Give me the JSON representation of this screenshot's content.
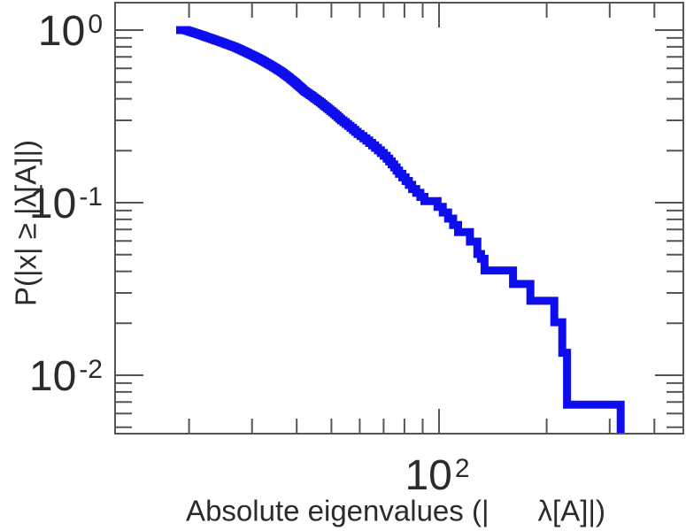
{
  "figure": {
    "background": "#ffffff",
    "frame_color": "#555555",
    "text_color": "#2b2b2b",
    "curve_color": "#0d0dee"
  },
  "chart_data": {
    "type": "line",
    "line_style": "ccdf-staircase",
    "title": "",
    "xlabel": "Absolute eigenvalues (|      λ[A]|)",
    "ylabel": "P(|x| ≥ |λ[A]|)",
    "x_scale": "log",
    "y_scale": "log",
    "xlim": [
      12.42,
      482
    ],
    "ylim": [
      0.004588,
      1.442
    ],
    "grid": false,
    "legend": false,
    "x_major_ticks": [
      100
    ],
    "x_minor_ticks": [
      20,
      30,
      40,
      50,
      60,
      70,
      80,
      90,
      200,
      300,
      400
    ],
    "y_major_ticks": [
      1,
      0.1,
      0.01
    ],
    "y_minor_ticks": [
      0.9,
      0.8,
      0.7,
      0.6,
      0.5,
      0.4,
      0.3,
      0.2,
      0.09,
      0.08,
      0.07,
      0.06,
      0.05,
      0.04,
      0.03,
      0.02,
      0.009,
      0.008,
      0.007,
      0.006,
      0.005
    ],
    "x_tick_labels": [
      {
        "value": 100,
        "base": "10",
        "exp": "2"
      }
    ],
    "y_tick_labels": [
      {
        "value": 1,
        "base": "10",
        "exp": "0"
      },
      {
        "value": 0.1,
        "base": "10",
        "exp": "-1"
      },
      {
        "value": 0.01,
        "base": "10",
        "exp": "-2"
      }
    ],
    "sample_count": 148,
    "series": [
      {
        "name": "absolute-eigenvalue-ccdf",
        "color": "#0d0dee",
        "points": [
          [
            18.4,
            1.0
          ],
          [
            19.5,
            1.0
          ],
          [
            22.7,
            0.9
          ],
          [
            27.0,
            0.79
          ],
          [
            31.8,
            0.67
          ],
          [
            36.2,
            0.57
          ],
          [
            42.1,
            0.44
          ],
          [
            48.0,
            0.36
          ],
          [
            53.2,
            0.3
          ],
          [
            59.2,
            0.25
          ],
          [
            65.0,
            0.215
          ],
          [
            71.4,
            0.18
          ],
          [
            77.3,
            0.147
          ],
          [
            84.1,
            0.12
          ],
          [
            91.0,
            0.102
          ],
          [
            99.0,
            0.0946
          ],
          [
            106,
            0.0809
          ],
          [
            113,
            0.0676
          ],
          [
            122,
            0.0595
          ],
          [
            128,
            0.0504
          ],
          [
            131,
            0.0473
          ],
          [
            134,
            0.0405
          ],
          [
            161,
            0.0338
          ],
          [
            180,
            0.027
          ],
          [
            210,
            0.0203
          ],
          [
            221,
            0.0135
          ],
          [
            228,
            0.00676
          ],
          [
            322,
            0.00676
          ],
          [
            322,
            0.004
          ]
        ]
      }
    ]
  }
}
